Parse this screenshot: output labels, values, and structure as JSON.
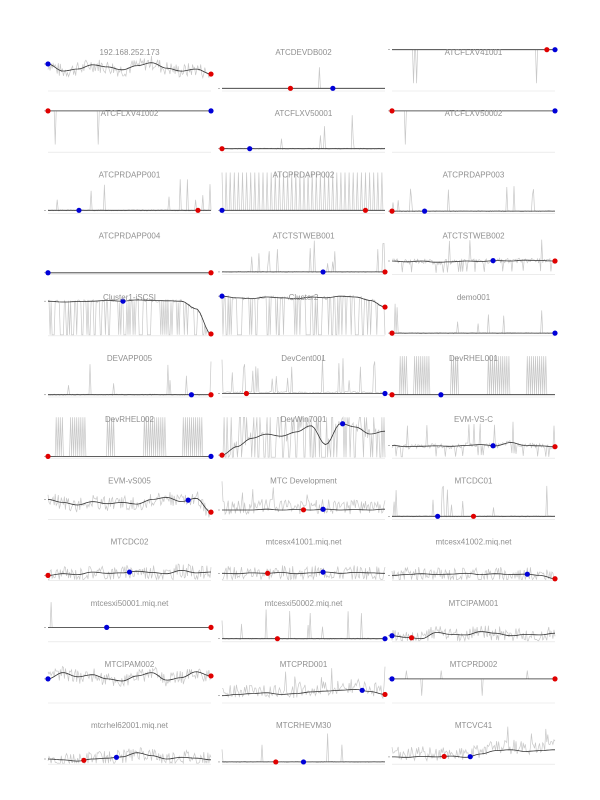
{
  "colors": {
    "raw_series": "#c8c8c8",
    "smooth_series": "#333333",
    "axis": "#000000",
    "min_marker": "#e00000",
    "max_marker": "#0000d8",
    "title": "#909090"
  },
  "chart_data": [
    {
      "type": "line",
      "title": "192.168.252.173",
      "shape": "noisy",
      "trend": [
        0.62,
        0.45,
        0.5,
        0.6,
        0.55,
        0.48,
        0.58,
        0.65,
        0.52,
        0.45,
        0.5,
        0.38
      ],
      "max_pos": 0.0,
      "min_pos": 1.0
    },
    {
      "type": "line",
      "title": "ATCDEVDB002",
      "shape": "flat",
      "baseline": 0.04,
      "max_pos": 0.68,
      "min_pos": 0.42
    },
    {
      "type": "line",
      "title": "ATCFLXV41001",
      "shape": "inverted",
      "baseline": 0.96,
      "max_pos": 1.0,
      "min_pos": 0.95
    },
    {
      "type": "line",
      "title": "ATCFLXV41002",
      "shape": "inverted",
      "baseline": 0.96,
      "max_pos": 1.0,
      "min_pos": 0.0
    },
    {
      "type": "line",
      "title": "ATCFLXV50001",
      "shape": "spiky",
      "baseline": 0.06,
      "max_pos": 0.17,
      "min_pos": 0.0
    },
    {
      "type": "line",
      "title": "ATCFLXV50002",
      "shape": "inverted",
      "baseline": 0.96,
      "max_pos": 1.0,
      "min_pos": 0.0
    },
    {
      "type": "line",
      "title": "ATCPRDAPP001",
      "shape": "spiky",
      "baseline": 0.05,
      "max_pos": 0.19,
      "min_pos": 0.92
    },
    {
      "type": "line",
      "title": "ATCPRDAPP002",
      "shape": "comb",
      "baseline": 0.05,
      "max_pos": 0.0,
      "min_pos": 0.88
    },
    {
      "type": "line",
      "title": "ATCPRDAPP003",
      "shape": "spiky",
      "baseline": 0.03,
      "max_pos": 0.2,
      "min_pos": 0.0
    },
    {
      "type": "line",
      "title": "ATCPRDAPP004",
      "shape": "flat",
      "baseline": 0.02,
      "max_pos": 0.0,
      "min_pos": 1.0
    },
    {
      "type": "line",
      "title": "ATCTSTWEB001",
      "shape": "spiky",
      "baseline": 0.04,
      "max_pos": 0.62,
      "min_pos": 1.0
    },
    {
      "type": "line",
      "title": "ATCTSTWEB002",
      "shape": "noisy_dips",
      "trend": [
        0.3,
        0.28,
        0.3,
        0.27,
        0.28,
        0.3,
        0.29,
        0.31,
        0.3,
        0.32,
        0.31,
        0.3
      ],
      "max_pos": 0.62,
      "min_pos": 1.0
    },
    {
      "type": "line",
      "title": "Cluster1-iSCSI",
      "shape": "dense_dips",
      "trend": [
        0.8,
        0.78,
        0.79,
        0.8,
        0.82,
        0.8,
        0.83,
        0.82,
        0.81,
        0.8,
        0.62,
        0.02
      ],
      "max_pos": 0.46,
      "min_pos": 1.0
    },
    {
      "type": "line",
      "title": "Cluster2",
      "shape": "dense_dips",
      "trend": [
        0.92,
        0.88,
        0.86,
        0.9,
        0.88,
        0.86,
        0.9,
        0.88,
        0.92,
        0.9,
        0.82,
        0.66
      ],
      "max_pos": 0.0,
      "min_pos": 1.0
    },
    {
      "type": "line",
      "title": "demo001",
      "shape": "spiky",
      "baseline": 0.04,
      "max_pos": 1.0,
      "min_pos": 0.0
    },
    {
      "type": "line",
      "title": "DEVAPP005",
      "shape": "spiky",
      "baseline": 0.03,
      "max_pos": 0.88,
      "min_pos": 1.0
    },
    {
      "type": "line",
      "title": "DevCent001",
      "shape": "spiky_high",
      "baseline": 0.06,
      "max_pos": 1.0,
      "min_pos": 0.15
    },
    {
      "type": "line",
      "title": "DevRHEL001",
      "shape": "blocks",
      "baseline": 0.03,
      "max_pos": 0.3,
      "min_pos": 0.0
    },
    {
      "type": "line",
      "title": "DevRHEL002",
      "shape": "blocks",
      "baseline": 0.02,
      "max_pos": 1.0,
      "min_pos": 0.0
    },
    {
      "type": "line",
      "title": "DevWin7001",
      "shape": "dense_up",
      "trend": [
        0.05,
        0.25,
        0.45,
        0.55,
        0.5,
        0.6,
        0.75,
        0.3,
        0.8,
        0.72,
        0.55,
        0.62
      ],
      "max_pos": 0.74,
      "min_pos": 0.0
    },
    {
      "type": "line",
      "title": "EVM-VS-C",
      "shape": "noisy_dips",
      "trend": [
        0.28,
        0.25,
        0.26,
        0.27,
        0.26,
        0.28,
        0.3,
        0.27,
        0.35,
        0.28,
        0.27,
        0.25
      ],
      "max_pos": 0.62,
      "min_pos": 1.0
    },
    {
      "type": "line",
      "title": "EVM-vS005",
      "shape": "noisy",
      "trend": [
        0.45,
        0.38,
        0.32,
        0.4,
        0.35,
        0.38,
        0.34,
        0.45,
        0.5,
        0.4,
        0.48,
        0.15
      ],
      "max_pos": 0.86,
      "min_pos": 1.0
    },
    {
      "type": "line",
      "title": "MTC Development",
      "shape": "dense_noise",
      "trend": [
        0.2,
        0.2,
        0.2,
        0.22,
        0.2,
        0.21,
        0.2,
        0.22,
        0.2,
        0.21,
        0.2,
        0.22
      ],
      "max_pos": 0.62,
      "min_pos": 0.5
    },
    {
      "type": "line",
      "title": "MTCDC01",
      "shape": "spiky",
      "baseline": 0.05,
      "max_pos": 0.28,
      "min_pos": 0.5
    },
    {
      "type": "line",
      "title": "MTCDC02",
      "shape": "noisy",
      "trend": [
        0.1,
        0.14,
        0.12,
        0.18,
        0.15,
        0.16,
        0.2,
        0.17,
        0.14,
        0.22,
        0.16,
        0.18
      ],
      "max_pos": 0.5,
      "min_pos": 0.0
    },
    {
      "type": "line",
      "title": "mtcesx41001.miq.net",
      "shape": "noisy",
      "trend": [
        0.15,
        0.14,
        0.16,
        0.15,
        0.17,
        0.14,
        0.16,
        0.18,
        0.15,
        0.17,
        0.16,
        0.15
      ],
      "max_pos": 0.62,
      "min_pos": 0.28
    },
    {
      "type": "line",
      "title": "mtcesx41002.miq.net",
      "shape": "noisy",
      "trend": [
        0.1,
        0.12,
        0.14,
        0.12,
        0.13,
        0.15,
        0.12,
        0.14,
        0.12,
        0.13,
        0.1,
        0.02
      ],
      "max_pos": 0.83,
      "min_pos": 1.0
    },
    {
      "type": "line",
      "title": "mtcesxi50001.miq.net",
      "shape": "flat_sparse",
      "baseline": 0.32,
      "max_pos": 0.36,
      "min_pos": 1.0
    },
    {
      "type": "line",
      "title": "mtcesxi50002.miq.net",
      "shape": "spiky",
      "baseline": 0.05,
      "max_pos": 1.0,
      "min_pos": 0.34
    },
    {
      "type": "line",
      "title": "MTCIPAM001",
      "shape": "noisy",
      "trend": [
        0.12,
        0.08,
        0.05,
        0.2,
        0.15,
        0.14,
        0.22,
        0.18,
        0.12,
        0.15,
        0.14,
        0.18
      ],
      "max_pos": 0.0,
      "min_pos": 0.12
    },
    {
      "type": "line",
      "title": "MTCIPAM002",
      "shape": "noisy",
      "trend": [
        0.55,
        0.7,
        0.6,
        0.65,
        0.55,
        0.5,
        0.62,
        0.7,
        0.52,
        0.58,
        0.72,
        0.62
      ],
      "max_pos": 0.0,
      "min_pos": 1.0
    },
    {
      "type": "line",
      "title": "MTCPRD001",
      "shape": "dense_noise",
      "trend": [
        0.15,
        0.18,
        0.2,
        0.22,
        0.18,
        0.2,
        0.24,
        0.26,
        0.28,
        0.3,
        0.25,
        0.18
      ],
      "max_pos": 0.86,
      "min_pos": 1.0
    },
    {
      "type": "line",
      "title": "MTCPRD002",
      "shape": "inverted_low",
      "baseline": 0.55,
      "max_pos": 0.0,
      "min_pos": 1.0
    },
    {
      "type": "line",
      "title": "mtcrhel62001.miq.net",
      "shape": "noisy",
      "trend": [
        0.1,
        0.08,
        0.05,
        0.1,
        0.12,
        0.15,
        0.25,
        0.18,
        0.1,
        0.14,
        0.12,
        0.08
      ],
      "max_pos": 0.42,
      "min_pos": 0.22
    },
    {
      "type": "line",
      "title": "MTCRHEVM30",
      "shape": "spiky",
      "baseline": 0.03,
      "max_pos": 0.5,
      "min_pos": 0.33
    },
    {
      "type": "line",
      "title": "MTCVC41",
      "shape": "dense_noise",
      "trend": [
        0.15,
        0.14,
        0.16,
        0.15,
        0.17,
        0.14,
        0.22,
        0.3,
        0.32,
        0.28,
        0.3,
        0.32
      ],
      "max_pos": 0.48,
      "min_pos": 0.32
    }
  ]
}
